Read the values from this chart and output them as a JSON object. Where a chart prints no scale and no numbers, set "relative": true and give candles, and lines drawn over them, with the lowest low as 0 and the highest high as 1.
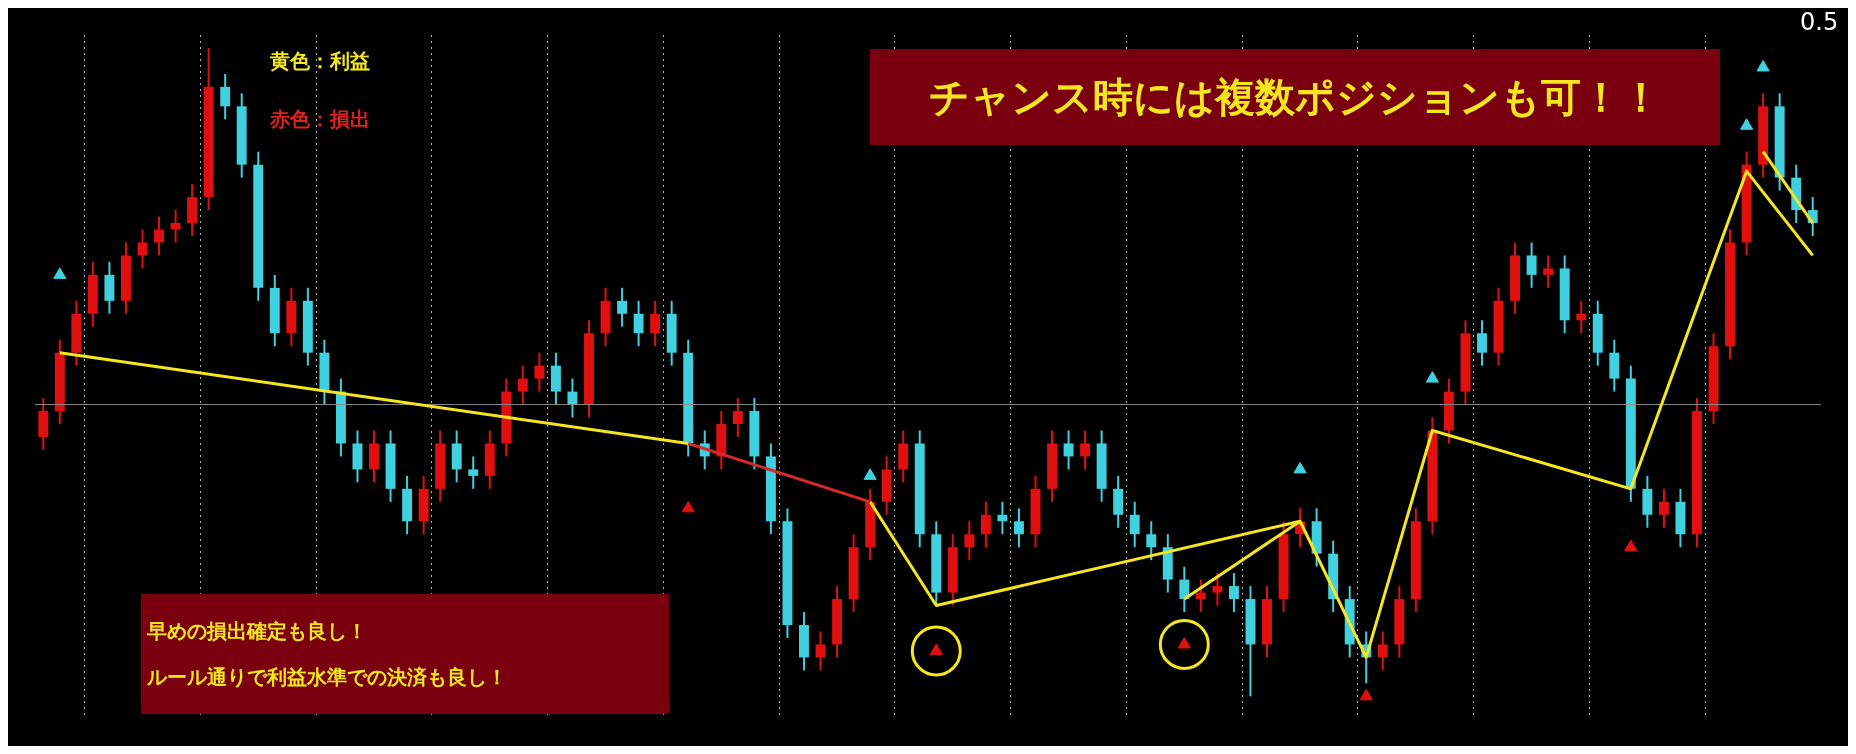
{
  "chart_data": {
    "type": "candlestick",
    "relative": true,
    "grid": "x",
    "categories": [
      null,
      null,
      null,
      null,
      null,
      null,
      null,
      null,
      null,
      null,
      null,
      null,
      null,
      null,
      null,
      null,
      null,
      null,
      null,
      null,
      null,
      null,
      null,
      null,
      null,
      null,
      null,
      null,
      null,
      null,
      null,
      null,
      null,
      null,
      null,
      null,
      null,
      null,
      null,
      null,
      null,
      null,
      null,
      null,
      null,
      null,
      null,
      null,
      null,
      null,
      null,
      null,
      null,
      null,
      null,
      null,
      null,
      null,
      null,
      null,
      null,
      null,
      null,
      null,
      null,
      null,
      null,
      null,
      null,
      null,
      null,
      null,
      null,
      null,
      null,
      null,
      null,
      null,
      null,
      null,
      null,
      null,
      null,
      null,
      null,
      null,
      null,
      null,
      null,
      null,
      null,
      null,
      null,
      null,
      null,
      null,
      null,
      null,
      null,
      null,
      null,
      null,
      null,
      null,
      null,
      null,
      null,
      null
    ],
    "ohlc": [
      [
        0.4,
        0.46,
        0.38,
        0.44
      ],
      [
        0.44,
        0.55,
        0.42,
        0.53
      ],
      [
        0.53,
        0.61,
        0.51,
        0.59
      ],
      [
        0.59,
        0.67,
        0.57,
        0.65
      ],
      [
        0.65,
        0.67,
        0.59,
        0.61
      ],
      [
        0.61,
        0.7,
        0.59,
        0.68
      ],
      [
        0.68,
        0.72,
        0.66,
        0.7
      ],
      [
        0.7,
        0.74,
        0.68,
        0.72
      ],
      [
        0.72,
        0.75,
        0.7,
        0.73
      ],
      [
        0.73,
        0.79,
        0.71,
        0.77
      ],
      [
        0.77,
        1.0,
        0.75,
        0.94
      ],
      [
        0.94,
        0.96,
        0.89,
        0.91
      ],
      [
        0.91,
        0.93,
        0.8,
        0.82
      ],
      [
        0.82,
        0.84,
        0.61,
        0.63
      ],
      [
        0.63,
        0.65,
        0.54,
        0.56
      ],
      [
        0.56,
        0.63,
        0.54,
        0.61
      ],
      [
        0.61,
        0.63,
        0.51,
        0.53
      ],
      [
        0.53,
        0.55,
        0.45,
        0.47
      ],
      [
        0.47,
        0.49,
        0.37,
        0.39
      ],
      [
        0.39,
        0.41,
        0.33,
        0.35
      ],
      [
        0.35,
        0.41,
        0.33,
        0.39
      ],
      [
        0.39,
        0.41,
        0.3,
        0.32
      ],
      [
        0.32,
        0.34,
        0.25,
        0.27
      ],
      [
        0.27,
        0.34,
        0.25,
        0.32
      ],
      [
        0.32,
        0.41,
        0.3,
        0.39
      ],
      [
        0.39,
        0.41,
        0.33,
        0.35
      ],
      [
        0.35,
        0.37,
        0.32,
        0.34
      ],
      [
        0.34,
        0.41,
        0.32,
        0.39
      ],
      [
        0.39,
        0.49,
        0.37,
        0.47
      ],
      [
        0.47,
        0.51,
        0.45,
        0.49
      ],
      [
        0.49,
        0.53,
        0.47,
        0.51
      ],
      [
        0.51,
        0.53,
        0.45,
        0.47
      ],
      [
        0.47,
        0.49,
        0.43,
        0.45
      ],
      [
        0.45,
        0.58,
        0.43,
        0.56
      ],
      [
        0.56,
        0.63,
        0.54,
        0.61
      ],
      [
        0.61,
        0.63,
        0.57,
        0.59
      ],
      [
        0.59,
        0.61,
        0.54,
        0.56
      ],
      [
        0.56,
        0.61,
        0.54,
        0.59
      ],
      [
        0.59,
        0.61,
        0.51,
        0.53
      ],
      [
        0.53,
        0.55,
        0.37,
        0.39
      ],
      [
        0.39,
        0.41,
        0.35,
        0.37
      ],
      [
        0.37,
        0.44,
        0.35,
        0.42
      ],
      [
        0.42,
        0.46,
        0.4,
        0.44
      ],
      [
        0.44,
        0.46,
        0.35,
        0.37
      ],
      [
        0.37,
        0.39,
        0.25,
        0.27
      ],
      [
        0.27,
        0.29,
        0.09,
        0.11
      ],
      [
        0.11,
        0.13,
        0.04,
        0.06
      ],
      [
        0.06,
        0.1,
        0.04,
        0.08
      ],
      [
        0.08,
        0.17,
        0.06,
        0.15
      ],
      [
        0.15,
        0.25,
        0.13,
        0.23
      ],
      [
        0.23,
        0.32,
        0.21,
        0.3
      ],
      [
        0.3,
        0.37,
        0.28,
        0.35
      ],
      [
        0.35,
        0.41,
        0.33,
        0.39
      ],
      [
        0.39,
        0.41,
        0.23,
        0.25
      ],
      [
        0.25,
        0.27,
        0.14,
        0.16
      ],
      [
        0.16,
        0.25,
        0.14,
        0.23
      ],
      [
        0.23,
        0.27,
        0.21,
        0.25
      ],
      [
        0.25,
        0.3,
        0.23,
        0.28
      ],
      [
        0.28,
        0.3,
        0.25,
        0.27
      ],
      [
        0.27,
        0.29,
        0.23,
        0.25
      ],
      [
        0.25,
        0.34,
        0.23,
        0.32
      ],
      [
        0.32,
        0.41,
        0.3,
        0.39
      ],
      [
        0.39,
        0.41,
        0.35,
        0.37
      ],
      [
        0.37,
        0.41,
        0.35,
        0.39
      ],
      [
        0.39,
        0.41,
        0.3,
        0.32
      ],
      [
        0.32,
        0.34,
        0.26,
        0.28
      ],
      [
        0.28,
        0.3,
        0.23,
        0.25
      ],
      [
        0.25,
        0.27,
        0.21,
        0.23
      ],
      [
        0.23,
        0.25,
        0.16,
        0.18
      ],
      [
        0.18,
        0.2,
        0.13,
        0.15
      ],
      [
        0.15,
        0.18,
        0.13,
        0.16
      ],
      [
        0.16,
        0.19,
        0.14,
        0.17
      ],
      [
        0.17,
        0.19,
        0.13,
        0.15
      ],
      [
        0.15,
        0.17,
        0.0,
        0.08
      ],
      [
        0.08,
        0.17,
        0.06,
        0.15
      ],
      [
        0.15,
        0.27,
        0.13,
        0.25
      ],
      [
        0.25,
        0.29,
        0.23,
        0.27
      ],
      [
        0.27,
        0.29,
        0.2,
        0.22
      ],
      [
        0.22,
        0.24,
        0.13,
        0.15
      ],
      [
        0.15,
        0.17,
        0.06,
        0.08
      ],
      [
        0.08,
        0.1,
        0.02,
        0.06
      ],
      [
        0.06,
        0.1,
        0.04,
        0.08
      ],
      [
        0.08,
        0.17,
        0.06,
        0.15
      ],
      [
        0.15,
        0.29,
        0.13,
        0.27
      ],
      [
        0.27,
        0.43,
        0.25,
        0.41
      ],
      [
        0.41,
        0.49,
        0.39,
        0.47
      ],
      [
        0.47,
        0.58,
        0.45,
        0.56
      ],
      [
        0.56,
        0.58,
        0.51,
        0.53
      ],
      [
        0.53,
        0.63,
        0.51,
        0.61
      ],
      [
        0.61,
        0.7,
        0.59,
        0.68
      ],
      [
        0.68,
        0.7,
        0.63,
        0.65
      ],
      [
        0.65,
        0.68,
        0.63,
        0.66
      ],
      [
        0.66,
        0.68,
        0.56,
        0.58
      ],
      [
        0.58,
        0.61,
        0.56,
        0.59
      ],
      [
        0.59,
        0.61,
        0.51,
        0.53
      ],
      [
        0.53,
        0.55,
        0.47,
        0.49
      ],
      [
        0.49,
        0.51,
        0.3,
        0.32
      ],
      [
        0.32,
        0.34,
        0.26,
        0.28
      ],
      [
        0.28,
        0.32,
        0.26,
        0.3
      ],
      [
        0.3,
        0.32,
        0.23,
        0.25
      ],
      [
        0.25,
        0.46,
        0.23,
        0.44
      ],
      [
        0.44,
        0.56,
        0.42,
        0.54
      ],
      [
        0.54,
        0.72,
        0.52,
        0.7
      ],
      [
        0.7,
        0.84,
        0.68,
        0.82
      ],
      [
        0.82,
        0.93,
        0.8,
        0.91
      ],
      [
        0.91,
        0.93,
        0.78,
        0.8
      ],
      [
        0.8,
        0.82,
        0.73,
        0.75
      ],
      [
        0.75,
        0.77,
        0.71,
        0.73
      ]
    ],
    "colors": [
      "#e01010",
      "#e01010",
      "#e01010",
      "#e01010",
      "#40d0e0",
      "#e01010",
      "#e01010",
      "#e01010",
      "#e01010",
      "#e01010",
      "#e01010",
      "#40d0e0",
      "#40d0e0",
      "#40d0e0",
      "#40d0e0",
      "#e01010",
      "#40d0e0",
      "#40d0e0",
      "#40d0e0",
      "#40d0e0",
      "#e01010",
      "#40d0e0",
      "#40d0e0",
      "#e01010",
      "#e01010",
      "#40d0e0",
      "#40d0e0",
      "#e01010",
      "#e01010",
      "#e01010",
      "#e01010",
      "#40d0e0",
      "#40d0e0",
      "#e01010",
      "#e01010",
      "#40d0e0",
      "#40d0e0",
      "#e01010",
      "#40d0e0",
      "#40d0e0",
      "#40d0e0",
      "#e01010",
      "#e01010",
      "#40d0e0",
      "#40d0e0",
      "#40d0e0",
      "#40d0e0",
      "#e01010",
      "#e01010",
      "#e01010",
      "#e01010",
      "#e01010",
      "#e01010",
      "#40d0e0",
      "#40d0e0",
      "#e01010",
      "#e01010",
      "#e01010",
      "#40d0e0",
      "#40d0e0",
      "#e01010",
      "#e01010",
      "#40d0e0",
      "#e01010",
      "#40d0e0",
      "#40d0e0",
      "#40d0e0",
      "#40d0e0",
      "#40d0e0",
      "#40d0e0",
      "#e01010",
      "#e01010",
      "#40d0e0",
      "#40d0e0",
      "#e01010",
      "#e01010",
      "#e01010",
      "#40d0e0",
      "#40d0e0",
      "#40d0e0",
      "#40d0e0",
      "#e01010",
      "#e01010",
      "#e01010",
      "#e01010",
      "#e01010",
      "#e01010",
      "#40d0e0",
      "#e01010",
      "#e01010",
      "#40d0e0",
      "#e01010",
      "#40d0e0",
      "#e01010",
      "#40d0e0",
      "#40d0e0",
      "#40d0e0",
      "#40d0e0",
      "#e01010",
      "#40d0e0",
      "#e01010",
      "#e01010",
      "#e01010",
      "#e01010",
      "#e01010",
      "#40d0e0",
      "#40d0e0",
      "#40d0e0"
    ],
    "series": [
      {
        "type": "line",
        "color": "#f5e61e",
        "values": [
          null,
          0.53,
          null,
          null,
          null,
          null,
          null,
          null,
          null,
          null,
          null,
          null,
          null,
          null,
          null,
          null,
          null,
          null,
          null,
          null,
          null,
          null,
          null,
          null,
          null,
          null,
          null,
          null,
          null,
          null,
          null,
          null,
          null,
          null,
          null,
          null,
          null,
          null,
          null,
          0.39,
          null,
          null,
          null,
          null,
          null,
          null,
          null,
          null,
          null,
          null,
          null,
          null,
          null,
          null,
          null,
          null,
          null,
          null,
          null,
          null,
          null,
          null,
          null,
          null,
          null,
          null,
          null,
          null,
          null,
          null,
          null,
          null,
          null,
          null,
          null,
          null,
          null,
          null,
          null,
          null,
          null,
          null,
          null,
          null,
          null,
          null,
          null,
          null,
          null,
          null,
          null,
          null,
          null,
          null,
          null,
          null,
          null,
          null,
          null,
          null,
          null,
          null,
          null,
          null,
          null,
          null,
          null,
          null
        ]
      },
      {
        "type": "line",
        "color": "#d42a2a",
        "values": [
          null,
          null,
          null,
          null,
          null,
          null,
          null,
          null,
          null,
          null,
          null,
          null,
          null,
          null,
          null,
          null,
          null,
          null,
          null,
          null,
          null,
          null,
          null,
          null,
          null,
          null,
          null,
          null,
          null,
          null,
          null,
          null,
          null,
          null,
          null,
          null,
          null,
          null,
          null,
          0.39,
          null,
          null,
          null,
          null,
          null,
          null,
          null,
          null,
          null,
          null,
          0.3,
          null,
          null,
          null,
          null,
          null,
          null,
          null,
          null,
          null,
          null,
          null,
          null,
          null,
          null,
          null,
          null,
          null,
          null,
          null,
          null,
          null,
          null,
          null,
          null,
          null,
          null,
          null,
          null,
          null,
          null,
          null,
          null,
          null,
          null,
          null,
          null,
          null,
          null,
          null,
          null,
          null,
          null,
          null,
          null,
          null,
          null,
          null,
          null,
          null,
          null,
          null,
          null,
          null,
          null,
          null,
          null,
          null
        ]
      },
      {
        "type": "line",
        "color": "#f5e61e",
        "values": [
          null,
          null,
          null,
          null,
          null,
          null,
          null,
          null,
          null,
          null,
          null,
          null,
          null,
          null,
          null,
          null,
          null,
          null,
          null,
          null,
          null,
          null,
          null,
          null,
          null,
          null,
          null,
          null,
          null,
          null,
          null,
          null,
          null,
          null,
          null,
          null,
          null,
          null,
          null,
          null,
          null,
          null,
          null,
          null,
          null,
          null,
          null,
          null,
          null,
          null,
          0.3,
          null,
          null,
          null,
          0.14,
          null,
          null,
          null,
          null,
          null,
          null,
          null,
          null,
          null,
          null,
          null,
          null,
          null,
          null,
          null,
          null,
          null,
          null,
          null,
          null,
          null,
          0.27,
          null,
          null,
          null,
          0.06,
          null,
          null,
          null,
          0.41,
          null,
          null,
          null,
          null,
          null,
          null,
          null,
          null,
          null,
          null,
          null,
          0.32,
          null,
          null,
          null,
          null,
          null,
          null,
          0.81,
          null,
          null,
          null,
          0.68
        ]
      },
      {
        "type": "line",
        "color": "#f5e61e",
        "values": [
          null,
          null,
          null,
          null,
          null,
          null,
          null,
          null,
          null,
          null,
          null,
          null,
          null,
          null,
          null,
          null,
          null,
          null,
          null,
          null,
          null,
          null,
          null,
          null,
          null,
          null,
          null,
          null,
          null,
          null,
          null,
          null,
          null,
          null,
          null,
          null,
          null,
          null,
          null,
          null,
          null,
          null,
          null,
          null,
          null,
          null,
          null,
          null,
          null,
          null,
          null,
          null,
          null,
          null,
          null,
          null,
          null,
          null,
          null,
          null,
          null,
          null,
          null,
          null,
          null,
          null,
          null,
          null,
          null,
          0.15,
          null,
          null,
          null,
          null,
          null,
          null,
          0.27,
          null,
          null,
          null,
          null,
          null,
          null,
          null,
          null,
          null,
          null,
          null,
          null,
          null,
          null,
          null,
          null,
          null,
          null,
          null,
          null,
          null,
          null,
          null,
          null,
          null,
          null,
          null,
          null,
          null,
          null,
          null
        ]
      },
      {
        "type": "line",
        "color": "#f5e61e",
        "values": [
          null,
          null,
          null,
          null,
          null,
          null,
          null,
          null,
          null,
          null,
          null,
          null,
          null,
          null,
          null,
          null,
          null,
          null,
          null,
          null,
          null,
          null,
          null,
          null,
          null,
          null,
          null,
          null,
          null,
          null,
          null,
          null,
          null,
          null,
          null,
          null,
          null,
          null,
          null,
          null,
          null,
          null,
          null,
          null,
          null,
          null,
          null,
          null,
          null,
          null,
          null,
          null,
          null,
          null,
          null,
          null,
          null,
          null,
          null,
          null,
          null,
          null,
          null,
          null,
          null,
          null,
          null,
          null,
          null,
          null,
          null,
          null,
          null,
          null,
          null,
          null,
          null,
          null,
          null,
          null,
          null,
          null,
          null,
          null,
          null,
          null,
          null,
          null,
          null,
          null,
          null,
          null,
          null,
          null,
          null,
          null,
          null,
          null,
          null,
          null,
          null,
          null,
          null,
          null,
          0.84,
          null,
          null,
          0.73
        ]
      },
      {
        "type": "scatter",
        "marker": "triangle",
        "color": "#40d0e0",
        "values": [
          null,
          0.65,
          null,
          null,
          null,
          null,
          null,
          null,
          null,
          null,
          null,
          null,
          null,
          null,
          null,
          null,
          null,
          null,
          null,
          null,
          null,
          null,
          null,
          null,
          null,
          null,
          null,
          null,
          null,
          null,
          null,
          null,
          null,
          null,
          null,
          null,
          null,
          null,
          null,
          null,
          null,
          null,
          null,
          null,
          null,
          null,
          null,
          null,
          null,
          null,
          0.34,
          null,
          null,
          null,
          null,
          null,
          null,
          null,
          null,
          null,
          null,
          null,
          null,
          null,
          null,
          null,
          null,
          null,
          null,
          null,
          null,
          null,
          null,
          null,
          null,
          null,
          0.35,
          null,
          null,
          null,
          null,
          null,
          null,
          null,
          0.49,
          null,
          null,
          null,
          null,
          null,
          null,
          null,
          null,
          null,
          null,
          null,
          null,
          null,
          null,
          null,
          null,
          null,
          null,
          0.88,
          0.97,
          null,
          null,
          null
        ]
      },
      {
        "type": "scatter",
        "marker": "triangle",
        "color": "#e01010",
        "values": [
          null,
          null,
          null,
          null,
          null,
          null,
          null,
          null,
          null,
          null,
          null,
          null,
          null,
          null,
          null,
          null,
          null,
          null,
          null,
          null,
          null,
          null,
          null,
          null,
          null,
          null,
          null,
          null,
          null,
          null,
          null,
          null,
          null,
          null,
          null,
          null,
          null,
          null,
          null,
          0.29,
          null,
          null,
          null,
          null,
          null,
          null,
          null,
          null,
          null,
          null,
          null,
          null,
          null,
          null,
          0.07,
          null,
          null,
          null,
          null,
          null,
          null,
          null,
          null,
          null,
          null,
          null,
          null,
          null,
          null,
          0.08,
          null,
          null,
          null,
          null,
          null,
          null,
          null,
          null,
          null,
          null,
          0.0,
          null,
          null,
          null,
          null,
          null,
          null,
          null,
          null,
          null,
          null,
          null,
          null,
          null,
          null,
          null,
          0.23,
          null,
          null,
          null,
          null,
          null,
          null,
          null,
          null,
          null,
          null,
          null
        ]
      },
      {
        "type": "scatter",
        "marker": "circle",
        "color": "#f5e61e",
        "values": [
          null,
          null,
          null,
          null,
          null,
          null,
          null,
          null,
          null,
          null,
          null,
          null,
          null,
          null,
          null,
          null,
          null,
          null,
          null,
          null,
          null,
          null,
          null,
          null,
          null,
          null,
          null,
          null,
          null,
          null,
          null,
          null,
          null,
          null,
          null,
          null,
          null,
          null,
          null,
          null,
          null,
          null,
          null,
          null,
          null,
          null,
          null,
          null,
          null,
          null,
          null,
          null,
          null,
          null,
          0.07,
          null,
          null,
          null,
          null,
          null,
          null,
          null,
          null,
          null,
          null,
          null,
          null,
          null,
          null,
          0.08,
          null,
          null,
          null,
          null,
          null,
          null,
          null,
          null,
          null,
          null,
          null,
          null,
          null,
          null,
          null,
          null,
          null,
          null,
          null,
          null,
          null,
          null,
          null,
          null,
          null,
          null,
          null,
          null,
          null,
          null,
          null,
          null,
          null,
          null,
          null,
          null,
          null,
          null
        ]
      }
    ],
    "ref_lines": [
      {
        "axis": "y",
        "value": 0.45,
        "color": "#8a8a8a"
      }
    ],
    "annotations": [
      "黄色：利益",
      "赤色：損出",
      "チャンス時には複数ポジションも可！！",
      "早めの損出確定も良し！",
      "ルール通りで利益水準での決済も良し！",
      "0.5"
    ]
  }
}
